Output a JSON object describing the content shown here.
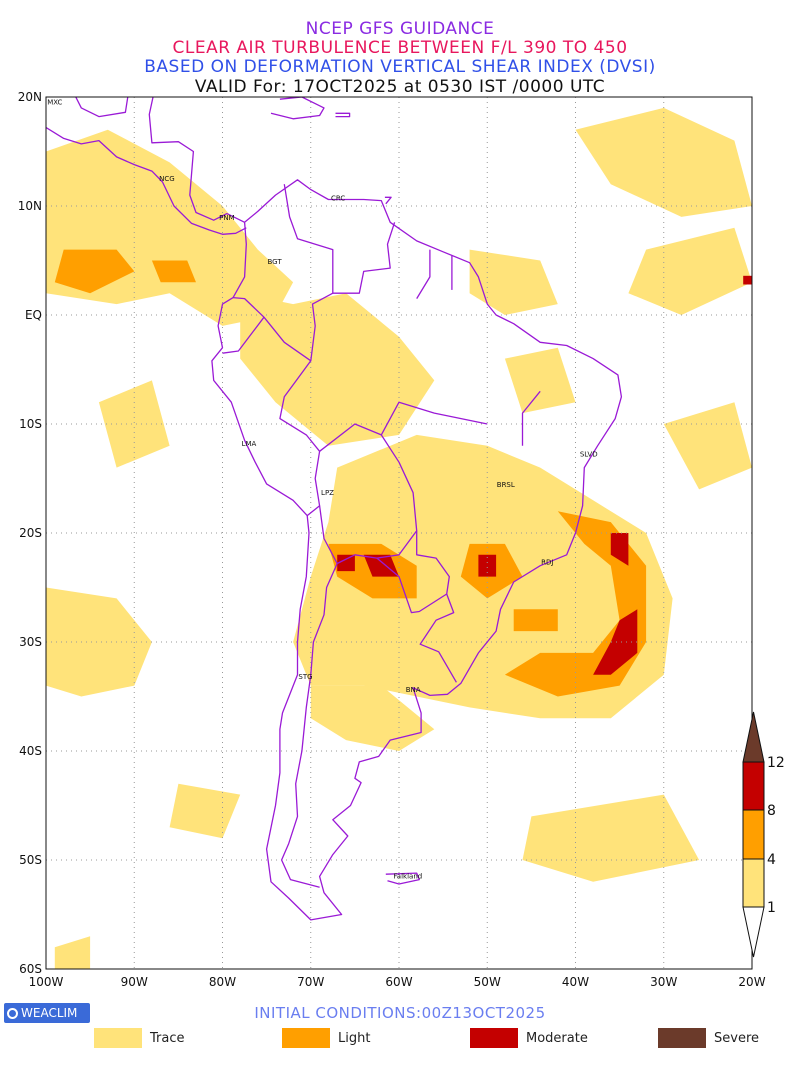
{
  "title_lines": [
    "NCEP GFS GUIDANCE",
    "CLEAR AIR TURBULENCE BETWEEN F/L 390 TO 450",
    "BASED ON DEFORMATION VERTICAL SHEAR INDEX (DVSI)",
    "VALID For: 17OCT2025 at 0530 IST /0000 UTC"
  ],
  "colors": {
    "trace": "#ffe37a",
    "light": "#ff9f00",
    "moderate": "#c40000",
    "severe": "#6b3a2a",
    "boundary": "#9a1ad6",
    "grid": "#999999"
  },
  "lat_labels": [
    "20N",
    "10N",
    "EQ",
    "10S",
    "20S",
    "30S",
    "40S",
    "50S",
    "60S"
  ],
  "lon_labels": [
    "100W",
    "90W",
    "80W",
    "70W",
    "60W",
    "50W",
    "40W",
    "30W",
    "20W"
  ],
  "cities": [
    {
      "name": "MXC",
      "lon": -99,
      "lat": 19.3
    },
    {
      "name": "NCG",
      "lon": -86.3,
      "lat": 12.3
    },
    {
      "name": "PNM",
      "lon": -79.5,
      "lat": 8.7
    },
    {
      "name": "BGT",
      "lon": -74.1,
      "lat": 4.7
    },
    {
      "name": "CRC",
      "lon": -66.9,
      "lat": 10.5
    },
    {
      "name": "LMA",
      "lon": -77,
      "lat": -12
    },
    {
      "name": "LPZ",
      "lon": -68.1,
      "lat": -16.5
    },
    {
      "name": "BRSL",
      "lon": -47.9,
      "lat": -15.8
    },
    {
      "name": "SLVD",
      "lon": -38.5,
      "lat": -13
    },
    {
      "name": "RDJ",
      "lon": -43.2,
      "lat": -22.9
    },
    {
      "name": "STG",
      "lon": -70.6,
      "lat": -33.4
    },
    {
      "name": "BNA",
      "lon": -58.4,
      "lat": -34.6
    },
    {
      "name": "Falkland",
      "lon": -59,
      "lat": -51.7
    }
  ],
  "colorbar_ticks": [
    "12",
    "8",
    "4",
    "1"
  ],
  "initial_conditions": "INITIAL CONDITIONS:00Z13OCT2025",
  "brand": "WEACLIM",
  "legend": [
    "Trace",
    "Light",
    "Moderate",
    "Severe"
  ]
}
